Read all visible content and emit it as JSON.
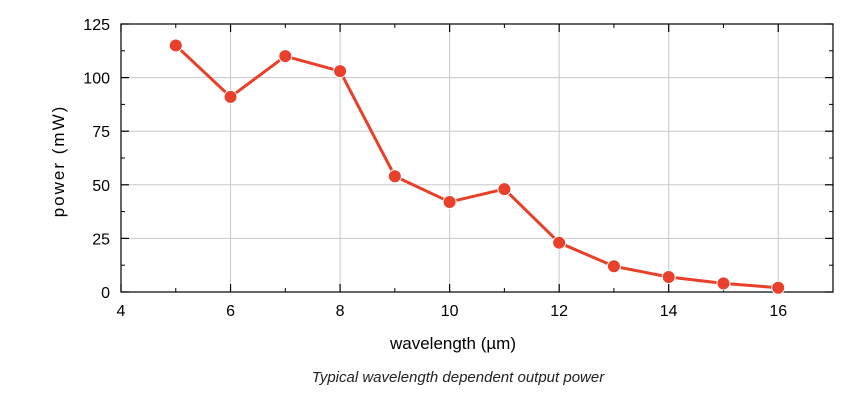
{
  "chart_data": {
    "type": "line",
    "caption": "Typical wavelength dependent output power",
    "xlabel": "wavelength (µm)",
    "ylabel": "power (mW)",
    "xlim": [
      4,
      17
    ],
    "ylim": [
      0,
      125
    ],
    "xticks": [
      4,
      6,
      8,
      10,
      12,
      14,
      16
    ],
    "yticks": [
      0,
      25,
      50,
      75,
      100,
      125
    ],
    "grid": true,
    "legend": "none",
    "series": [
      {
        "x": [
          5,
          6,
          7,
          8,
          9,
          10,
          11,
          12,
          13,
          14,
          15,
          16
        ],
        "y": [
          115,
          91,
          110,
          103,
          54,
          42,
          48,
          23,
          12,
          7,
          4,
          2
        ],
        "color": "#e8402a"
      }
    ]
  }
}
